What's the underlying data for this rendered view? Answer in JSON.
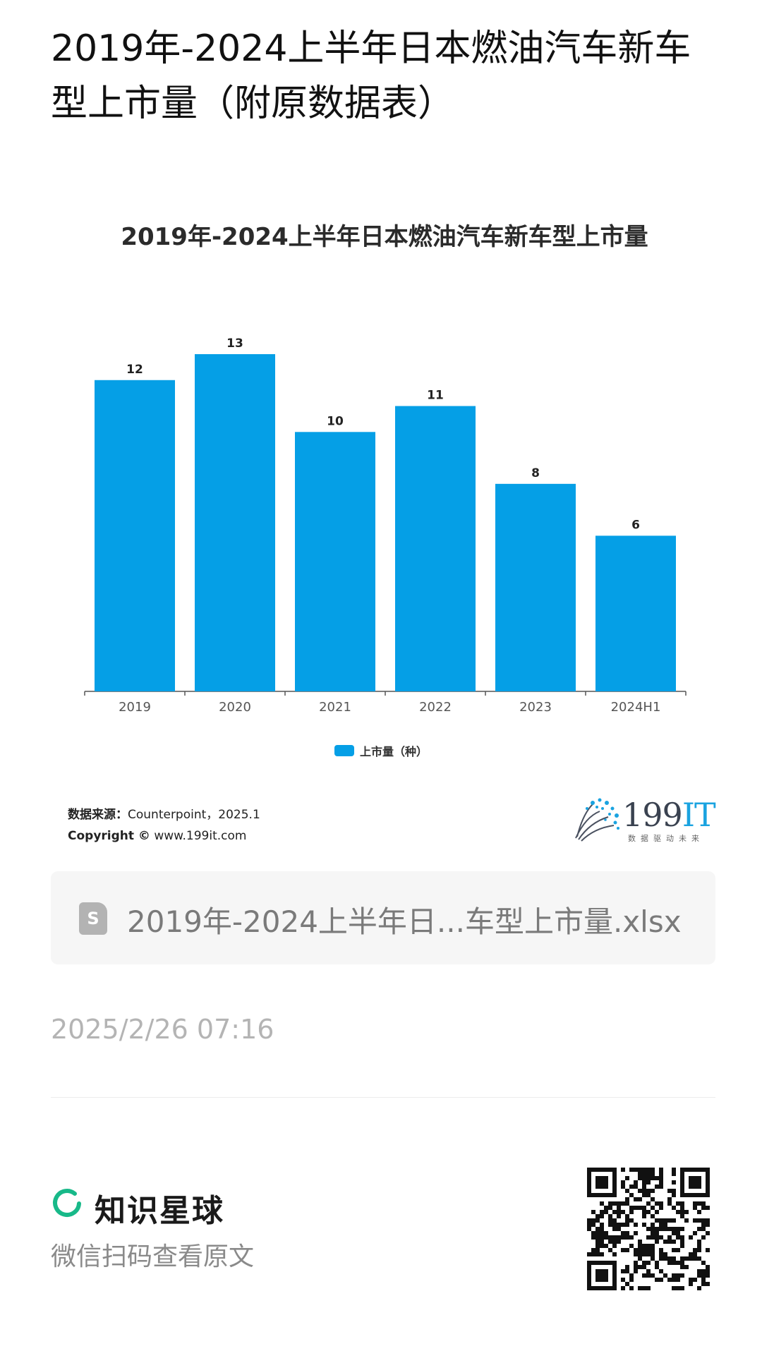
{
  "page": {
    "title": "2019年-2024上半年日本燃油汽车新车型上市量（附原数据表）"
  },
  "chart_data": {
    "type": "bar",
    "title": "2019年-2024上半年日本燃油汽车新车型上市量",
    "categories": [
      "2019",
      "2020",
      "2021",
      "2022",
      "2023",
      "2024H1"
    ],
    "series": [
      {
        "name": "上市量（种）",
        "values": [
          12,
          13,
          10,
          11,
          8,
          6
        ],
        "color": "#059fe6"
      }
    ],
    "ylim": [
      0,
      13
    ],
    "grid": false,
    "legend": "bottom-center"
  },
  "source": {
    "label": "数据来源：",
    "text": "Counterpoint，2025.1",
    "copyright_label": "Copyright ©",
    "copyright_url": "www.199it.com"
  },
  "logo": {
    "name_prefix": "199",
    "name_suffix": "IT",
    "tagline": "数据驱动未来",
    "icon": "dandelion-logo-icon"
  },
  "file": {
    "icon": "spreadsheet-file-icon",
    "icon_letter": "S",
    "name": "2019年-2024上半年日...车型上市量.xlsx"
  },
  "timestamp": "2025/2/26 07:16",
  "footer": {
    "brand_icon": "ring-logo-icon",
    "brand_name": "知识星球",
    "scan_text": "微信扫码查看原文",
    "qr_icon": "qr-code-icon",
    "brand_color": "#18b989"
  }
}
